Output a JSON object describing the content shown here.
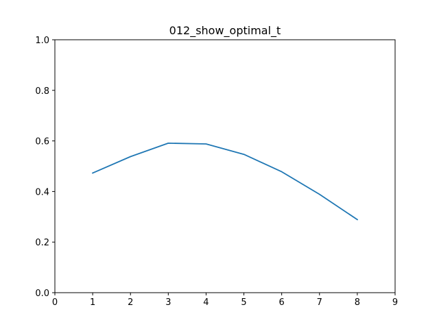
{
  "chart_data": {
    "type": "line",
    "title": "012_show_optimal_t",
    "xlabel": "",
    "ylabel": "",
    "xlim": [
      0,
      9
    ],
    "ylim": [
      0.0,
      1.0
    ],
    "xticks": [
      "0",
      "1",
      "2",
      "3",
      "4",
      "5",
      "6",
      "7",
      "8",
      "9"
    ],
    "yticks": [
      "0.0",
      "0.2",
      "0.4",
      "0.6",
      "0.8",
      "1.0"
    ],
    "grid": false,
    "series": [
      {
        "color": "#1f77b4",
        "x": [
          1,
          2,
          3,
          4,
          5,
          6,
          7,
          8
        ],
        "y": [
          0.473,
          0.538,
          0.591,
          0.588,
          0.547,
          0.478,
          0.389,
          0.289
        ]
      }
    ]
  }
}
